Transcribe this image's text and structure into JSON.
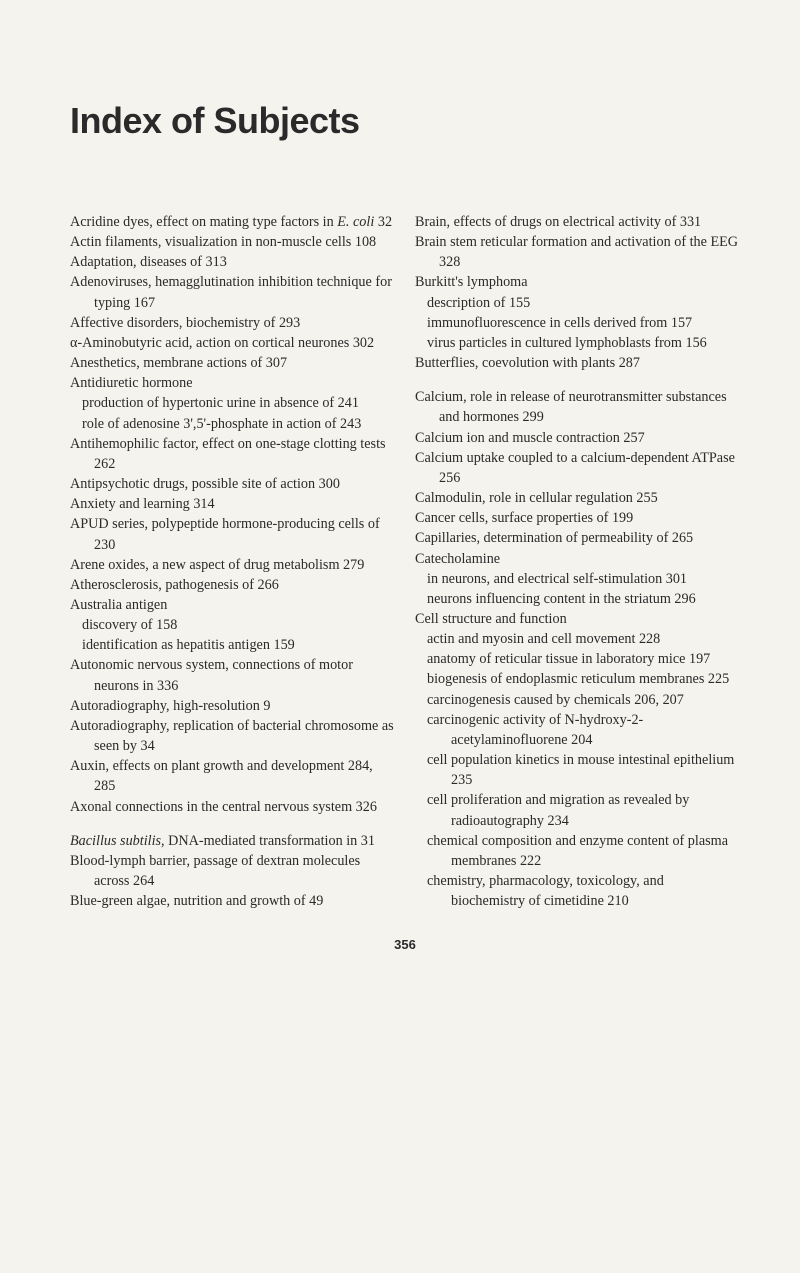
{
  "title": "Index of Subjects",
  "page_number": "356",
  "col1": {
    "e1": "Acridine dyes, effect on mating type factors in",
    "e1i": "E. coli",
    "e1p": "   32",
    "e2": "Actin filaments, visualization in non-muscle cells   108",
    "e3": "Adaptation, diseases of   313",
    "e4": "Adenoviruses, hemagglutination inhibition technique for typing   167",
    "e5": "Affective disorders, biochemistry of   293",
    "e6": "α-Aminobutyric acid, action on cortical neurones   302",
    "e7": "Anesthetics, membrane actions of   307",
    "e8": "Antidiuretic hormone",
    "e8a": "production of hypertonic urine in absence of   241",
    "e8b": "role of adenosine 3',5'-phosphate in action of   243",
    "e9": "Antihemophilic factor, effect on one-stage clotting tests   262",
    "e10": "Antipsychotic drugs, possible site of action   300",
    "e11": "Anxiety and learning   314",
    "e12": "APUD series, polypeptide hormone-producing cells of   230",
    "e13": "Arene oxides, a new aspect of drug metabolism   279",
    "e14": "Atherosclerosis, pathogenesis of   266",
    "e15": "Australia antigen",
    "e15a": "discovery of   158",
    "e15b": "identification as hepatitis antigen   159",
    "e16": "Autonomic nervous system, connections of motor neurons in   336",
    "e17": "Autoradiography, high-resolution   9",
    "e18": "Autoradiography, replication of bacterial chromosome as seen by   34",
    "e19": "Auxin, effects on plant growth and development   284, 285",
    "e20": "Axonal connections in the central nervous system   326",
    "e21i": "Bacillus subtilis,",
    "e21": " DNA-mediated transformation in   31",
    "e22": "Blood-lymph barrier, passage of dextran molecules across   264",
    "e23": "Blue-green algae, nutrition and growth of   49"
  },
  "col2": {
    "e1": "Brain, effects of drugs on electrical activity of   331",
    "e2": "Brain stem reticular formation and activation of the EEG   328",
    "e3": "Burkitt's lymphoma",
    "e3a": "description of   155",
    "e3b": "immunofluorescence in cells derived from   157",
    "e3c": "virus particles in cultured lymphoblasts from   156",
    "e4": "Butterflies, coevolution with plants   287",
    "e5": "Calcium, role in release of neurotransmitter substances and hormones   299",
    "e6": "Calcium ion and muscle contraction   257",
    "e7": "Calcium uptake coupled to a calcium-dependent ATPase   256",
    "e8": "Calmodulin, role in cellular regulation   255",
    "e9": "Cancer cells, surface properties of   199",
    "e10": "Capillaries, determination of permeability of   265",
    "e11": "Catecholamine",
    "e11a": "in neurons, and electrical self-stimulation   301",
    "e11b": "neurons influencing content in the striatum   296",
    "e12": "Cell structure and function",
    "e12a": "actin and myosin and cell movement   228",
    "e12b": "anatomy of reticular tissue in laboratory mice   197",
    "e12c": "biogenesis of endoplasmic reticulum membranes   225",
    "e12d": "carcinogenesis caused by chemicals   206, 207",
    "e12e": "carcinogenic activity of N-hydroxy-2-acetylaminofluorene   204",
    "e12f": "cell population kinetics in mouse intestinal epithelium   235",
    "e12g": "cell proliferation and migration as revealed by radioautography   234",
    "e12h": "chemical composition and enzyme content of plasma membranes   222",
    "e12i": "chemistry, pharmacology, toxicology, and biochemistry of cimetidine   210"
  }
}
